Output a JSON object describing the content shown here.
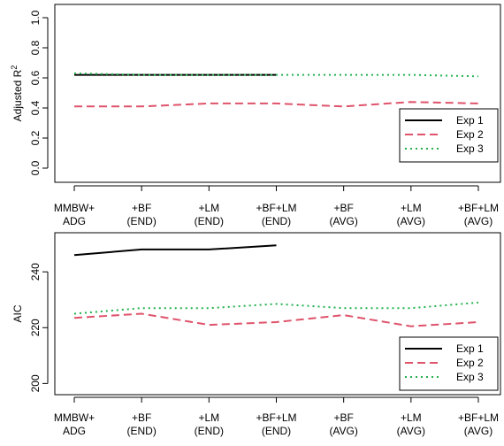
{
  "chart_data": [
    {
      "type": "line",
      "ylabel": "Adjusted R",
      "ylabel_superscript": "2",
      "ylim": [
        0.0,
        1.0
      ],
      "yticks": [
        "0.0",
        "0.2",
        "0.4",
        "0.6",
        "0.8",
        "1.0"
      ],
      "categories": [
        [
          "MMBW+",
          "ADG"
        ],
        [
          "+BF",
          "(END)"
        ],
        [
          "+LM",
          "(END)"
        ],
        [
          "+BF+LM",
          "(END)"
        ],
        [
          "+BF",
          "(AVG)"
        ],
        [
          "+LM",
          "(AVG)"
        ],
        [
          "+BF+LM",
          "(AVG)"
        ]
      ],
      "series": [
        {
          "name": "Exp 1",
          "color": "#000000",
          "dash": "solid",
          "values": [
            0.62,
            0.62,
            0.62,
            0.62,
            null,
            null,
            null
          ]
        },
        {
          "name": "Exp 2",
          "color": "#DF536B",
          "dash": "dashed",
          "values": [
            0.41,
            0.41,
            0.43,
            0.43,
            0.41,
            0.44,
            0.43
          ]
        },
        {
          "name": "Exp 3",
          "color": "#22B14C",
          "dash": "dotted",
          "values": [
            0.63,
            0.62,
            0.62,
            0.62,
            0.62,
            0.62,
            0.61
          ]
        }
      ],
      "legend": "bottom-right"
    },
    {
      "type": "line",
      "ylabel": "AIC",
      "ylim": [
        196,
        254
      ],
      "yticks": [
        "200",
        "220",
        "240"
      ],
      "ytick_values": [
        200,
        220,
        240
      ],
      "categories": [
        [
          "MMBW+",
          "ADG"
        ],
        [
          "+BF",
          "(END)"
        ],
        [
          "+LM",
          "(END)"
        ],
        [
          "+BF+LM",
          "(END)"
        ],
        [
          "+BF",
          "(AVG)"
        ],
        [
          "+LM",
          "(AVG)"
        ],
        [
          "+BF+LM",
          "(AVG)"
        ]
      ],
      "series": [
        {
          "name": "Exp 1",
          "color": "#000000",
          "dash": "solid",
          "values": [
            246,
            248,
            248,
            249.5,
            null,
            null,
            null
          ]
        },
        {
          "name": "Exp 2",
          "color": "#DF536B",
          "dash": "dashed",
          "values": [
            223.5,
            225,
            221,
            222,
            224.5,
            220.5,
            222
          ]
        },
        {
          "name": "Exp 3",
          "color": "#22B14C",
          "dash": "dotted",
          "values": [
            225,
            227,
            227,
            228.5,
            227,
            227,
            229
          ]
        }
      ],
      "legend": "bottom-right"
    }
  ]
}
